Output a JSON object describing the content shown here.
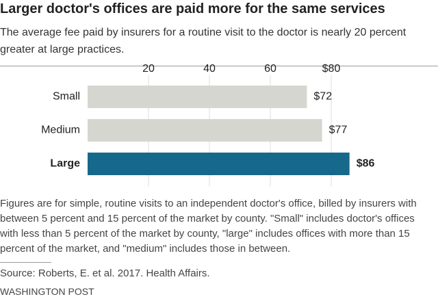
{
  "chart_data": {
    "type": "bar",
    "orientation": "horizontal",
    "title": "Larger doctor's offices are paid more for the same services",
    "subtitle": "The average fee paid by insurers for a routine visit to the doctor is nearly 20 percent greater at large practices.",
    "categories": [
      "Small",
      "Medium",
      "Large"
    ],
    "values": [
      72,
      77,
      86
    ],
    "value_labels": [
      "$72",
      "$77",
      "$86"
    ],
    "colors": [
      "#d6d6d1",
      "#d6d6d1",
      "#16698b"
    ],
    "xlim": [
      0,
      100
    ],
    "xticks": [
      20,
      40,
      60,
      {
        "value": 80,
        "label": "$80"
      }
    ],
    "grid": true,
    "note": "Figures are for simple, routine visits to an independent doctor's office, billed by insurers with between 5 percent and 15 percent of the market by county. \"Small\" includes doctor's offices with less than 5 percent of the market by county, \"large\" includes offices with more than 15 percent of the market, and \"medium\" includes those in between.",
    "source": "Source: Roberts, E. et al. 2017. Health Affairs.",
    "credit": "WASHINGTON POST"
  }
}
